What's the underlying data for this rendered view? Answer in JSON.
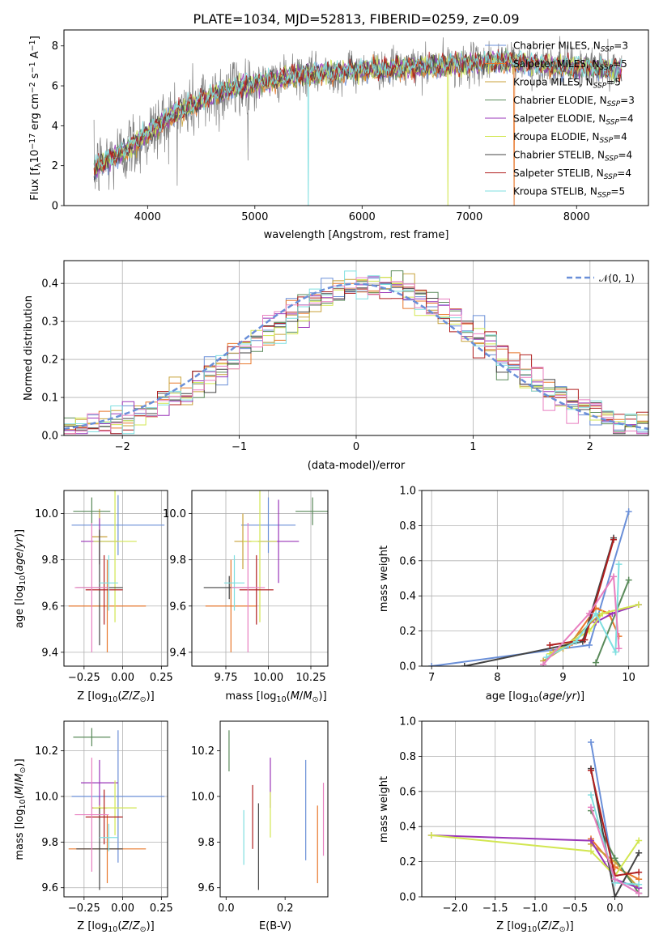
{
  "figure": {
    "title": "PLATE=1034, MJD=52813, FIBERID=0259, z=0.09"
  },
  "colors": {
    "Chabrier MILES": "#6a8fd8",
    "Salpeter MILES": "#e8782c",
    "Kroupa MILES": "#c8a23a",
    "Chabrier ELODIE": "#5a8a5a",
    "Salpeter ELODIE": "#9a35b8",
    "Kroupa ELODIE": "#d2e650",
    "Chabrier STELIB": "#444444",
    "Salpeter STELIB": "#b01e1e",
    "Kroupa STELIB": "#7fdfe0",
    "data": "#808080",
    "pink": "#e87fc0"
  },
  "chart_data": [
    {
      "id": "spectrum",
      "type": "line",
      "title": "PLATE=1034, MJD=52813, FIBERID=0259, z=0.09",
      "xlabel": "wavelength [Angstrom, rest frame]",
      "ylabel": "Flux [f_λ 10^-17 erg cm^-2 s^-1 A^-1]",
      "xlim": [
        3220,
        8670
      ],
      "ylim": [
        0,
        8.8
      ],
      "xticks": [
        4000,
        5000,
        6000,
        7000,
        8000
      ],
      "yticks": [
        0,
        2,
        4,
        6,
        8
      ],
      "grid": false,
      "legend_position": "right",
      "legend": [
        {
          "label": "Chabrier MILES, N_SSP=3",
          "base": "Chabrier MILES, N",
          "sub": "SSP",
          "tail": "=3"
        },
        {
          "label": "Salpeter MILES, N_SSP=5",
          "base": "Salpeter MILES, N",
          "sub": "SSP",
          "tail": "=5"
        },
        {
          "label": "Kroupa MILES, N_SSP=5",
          "base": "Kroupa MILES, N",
          "sub": "SSP",
          "tail": "=5"
        },
        {
          "label": "Chabrier ELODIE, N_SSP=3",
          "base": "Chabrier ELODIE, N",
          "sub": "SSP",
          "tail": "=3"
        },
        {
          "label": "Salpeter ELODIE, N_SSP=4",
          "base": "Salpeter ELODIE, N",
          "sub": "SSP",
          "tail": "=4"
        },
        {
          "label": "Kroupa ELODIE, N_SSP=4",
          "base": "Kroupa ELODIE, N",
          "sub": "SSP",
          "tail": "=4"
        },
        {
          "label": "Chabrier STELIB, N_SSP=4",
          "base": "Chabrier STELIB, N",
          "sub": "SSP",
          "tail": "=4"
        },
        {
          "label": "Salpeter STELIB, N_SSP=4",
          "base": "Salpeter STELIB, N",
          "sub": "SSP",
          "tail": "=4"
        },
        {
          "label": "Kroupa STELIB, N_SSP=5",
          "base": "Kroupa STELIB, N",
          "sub": "SSP",
          "tail": "=5"
        }
      ],
      "continuum": {
        "x": [
          3500,
          3600,
          3700,
          3800,
          3900,
          4000,
          4100,
          4200,
          4400,
          4600,
          4800,
          5000,
          5200,
          5400,
          5600,
          5800,
          6000,
          6200,
          6400,
          6600,
          6800,
          7000,
          7200,
          7400,
          7600,
          7800,
          8000,
          8200,
          8420
        ],
        "y": [
          1.8,
          2.2,
          2.5,
          2.8,
          3.2,
          3.6,
          4.0,
          4.4,
          5.0,
          5.5,
          5.9,
          6.1,
          6.3,
          6.5,
          6.6,
          6.7,
          6.8,
          6.85,
          6.9,
          6.95,
          7.05,
          7.1,
          7.2,
          7.2,
          7.1,
          7.0,
          6.95,
          6.9,
          6.8
        ]
      },
      "model_drops": [
        {
          "series": "Kroupa STELIB",
          "x": 5500
        },
        {
          "series": "Kroupa ELODIE",
          "x": 6800
        },
        {
          "series": "Salpeter MILES",
          "x": 7420
        }
      ]
    },
    {
      "id": "residuals",
      "type": "bar",
      "xlabel": "(data-model)/error",
      "ylabel": "Normed distribution",
      "xlim": [
        -2.5,
        2.5
      ],
      "ylim": [
        0,
        0.46
      ],
      "xticks": [
        -2,
        -1,
        0,
        1,
        2
      ],
      "yticks": [
        0.0,
        0.1,
        0.2,
        0.3,
        0.4
      ],
      "grid": true,
      "legend_position": "top-right",
      "legend": [
        {
          "label": "𝒩(0, 1)",
          "style": "dashed",
          "color": "#6a8fd8"
        }
      ],
      "bin_width": 0.1
    },
    {
      "id": "age-vs-Z",
      "type": "scatter",
      "xlabel": "Z [log10(Z/Z⊙)]",
      "ylabel": "age [log10(age/yr)]",
      "xlim": [
        -0.38,
        0.29
      ],
      "ylim": [
        9.34,
        10.1
      ],
      "xticks": [
        -0.25,
        0.0,
        0.25
      ],
      "yticks": [
        9.4,
        9.6,
        9.8,
        10.0
      ],
      "grid": true,
      "points": [
        {
          "series": "Chabrier MILES",
          "x": -0.03,
          "y": 9.95,
          "xerr": 0.3,
          "yerr": 0.13
        },
        {
          "series": "Salpeter MILES",
          "x": -0.1,
          "y": 9.6,
          "xerr": 0.25,
          "yerr": 0.2
        },
        {
          "series": "Kroupa MILES",
          "x": -0.15,
          "y": 9.9,
          "xerr": 0.05,
          "yerr": 0.12
        },
        {
          "series": "Chabrier ELODIE",
          "x": -0.2,
          "y": 10.01,
          "xerr": 0.12,
          "yerr": 0.06
        },
        {
          "series": "Salpeter ELODIE",
          "x": -0.15,
          "y": 9.88,
          "xerr": 0.12,
          "yerr": 0.1
        },
        {
          "series": "Kroupa ELODIE",
          "x": -0.05,
          "y": 9.88,
          "xerr": 0.14,
          "yerr": 0.35
        },
        {
          "series": "Chabrier STELIB",
          "x": -0.15,
          "y": 9.68,
          "xerr": 0.15,
          "yerr": 0.25
        },
        {
          "series": "Salpeter STELIB",
          "x": -0.12,
          "y": 9.67,
          "xerr": 0.12,
          "yerr": 0.15
        },
        {
          "series": "Kroupa STELIB",
          "x": -0.09,
          "y": 9.7,
          "xerr": 0.06,
          "yerr": 0.12
        },
        {
          "series": "pink",
          "x": -0.2,
          "y": 9.68,
          "xerr": 0.11,
          "yerr": 0.28
        }
      ]
    },
    {
      "id": "age-vs-mass",
      "type": "scatter",
      "xlabel": "mass [log10(M/M⊙)]",
      "ylabel": "",
      "xlim": [
        9.55,
        10.35
      ],
      "ylim": [
        9.34,
        10.1
      ],
      "xticks": [
        9.75,
        10.0,
        10.25
      ],
      "yticks": [
        9.4,
        9.6,
        9.8,
        10.0
      ],
      "grid": true,
      "points": [
        {
          "series": "Chabrier MILES",
          "x": 10.0,
          "y": 9.95,
          "xerr": 0.16,
          "yerr": 0.12
        },
        {
          "series": "Salpeter MILES",
          "x": 9.78,
          "y": 9.6,
          "xerr": 0.15,
          "yerr": 0.2
        },
        {
          "series": "Kroupa MILES",
          "x": 9.85,
          "y": 9.88,
          "xerr": 0.05,
          "yerr": 0.12
        },
        {
          "series": "Chabrier ELODIE",
          "x": 10.26,
          "y": 10.01,
          "xerr": 0.1,
          "yerr": 0.06
        },
        {
          "series": "Salpeter ELODIE",
          "x": 10.06,
          "y": 9.88,
          "xerr": 0.12,
          "yerr": 0.18
        },
        {
          "series": "Kroupa ELODIE",
          "x": 9.95,
          "y": 9.88,
          "xerr": 0.1,
          "yerr": 0.35
        },
        {
          "series": "Chabrier STELIB",
          "x": 9.77,
          "y": 9.68,
          "xerr": 0.15,
          "yerr": 0.05
        },
        {
          "series": "Salpeter STELIB",
          "x": 9.93,
          "y": 9.67,
          "xerr": 0.1,
          "yerr": 0.15
        },
        {
          "series": "Kroupa STELIB",
          "x": 9.8,
          "y": 9.7,
          "xerr": 0.06,
          "yerr": 0.12
        },
        {
          "series": "pink",
          "x": 9.88,
          "y": 9.68,
          "xerr": 0.1,
          "yerr": 0.28
        }
      ]
    },
    {
      "id": "massweight-vs-age",
      "type": "line",
      "xlabel": "age [log10(age/yr)]",
      "ylabel": "mass weight",
      "xlim": [
        6.85,
        10.3
      ],
      "ylim": [
        0,
        1.0
      ],
      "xticks": [
        7,
        8,
        9,
        10
      ],
      "yticks": [
        0.0,
        0.2,
        0.4,
        0.6,
        0.8,
        1.0
      ],
      "grid": true,
      "series": [
        {
          "name": "Chabrier MILES",
          "x": [
            7.0,
            9.4,
            10.0
          ],
          "y": [
            0.0,
            0.12,
            0.88
          ]
        },
        {
          "name": "Salpeter MILES",
          "x": [
            8.85,
            9.1,
            9.5,
            9.7,
            9.85
          ],
          "y": [
            0.08,
            0.12,
            0.33,
            0.3,
            0.17
          ]
        },
        {
          "name": "Kroupa MILES",
          "x": [
            8.7,
            9.0,
            9.55
          ],
          "y": [
            0.03,
            0.1,
            0.29
          ]
        },
        {
          "name": "Chabrier ELODIE",
          "x": [
            9.5,
            10.0
          ],
          "y": [
            0.02,
            0.49
          ]
        },
        {
          "name": "Salpeter ELODIE",
          "x": [
            9.5,
            9.75,
            10.15
          ],
          "y": [
            0.25,
            0.3,
            0.35
          ]
        },
        {
          "name": "Kroupa ELODIE",
          "x": [
            8.8,
            9.4,
            9.6,
            10.15
          ],
          "y": [
            0.07,
            0.2,
            0.3,
            0.35
          ]
        },
        {
          "name": "Chabrier STELIB",
          "x": [
            7.5,
            9.3,
            9.77
          ],
          "y": [
            0.0,
            0.14,
            0.73
          ]
        },
        {
          "name": "Salpeter STELIB",
          "x": [
            8.8,
            9.33,
            9.77
          ],
          "y": [
            0.12,
            0.15,
            0.72
          ]
        },
        {
          "name": "Kroupa STELIB",
          "x": [
            8.75,
            9.2,
            9.5,
            9.8,
            9.85
          ],
          "y": [
            0.05,
            0.14,
            0.3,
            0.08,
            0.58
          ]
        },
        {
          "name": "pink",
          "x": [
            8.7,
            9.4,
            9.77,
            9.85
          ],
          "y": [
            0.01,
            0.3,
            0.51,
            0.1
          ]
        }
      ]
    },
    {
      "id": "mass-vs-Z",
      "type": "scatter",
      "xlabel": "Z [log10(Z/Z⊙)]",
      "ylabel": "mass [log10(M/M⊙)]",
      "xlim": [
        -0.38,
        0.29
      ],
      "ylim": [
        9.56,
        10.33
      ],
      "xticks": [
        -0.25,
        0.0,
        0.25
      ],
      "yticks": [
        9.6,
        9.8,
        10.0,
        10.2
      ],
      "grid": true,
      "points": [
        {
          "series": "Chabrier MILES",
          "x": -0.03,
          "y": 10.0,
          "xerr": 0.3,
          "yerr": 0.29
        },
        {
          "series": "Salpeter MILES",
          "x": -0.1,
          "y": 9.77,
          "xerr": 0.25,
          "yerr": 0.15
        },
        {
          "series": "Kroupa MILES",
          "x": -0.15,
          "y": 9.95,
          "xerr": 0.05,
          "yerr": 0.05
        },
        {
          "series": "Chabrier ELODIE",
          "x": -0.2,
          "y": 10.26,
          "xerr": 0.12,
          "yerr": 0.04
        },
        {
          "series": "Salpeter ELODIE",
          "x": -0.15,
          "y": 10.06,
          "xerr": 0.12,
          "yerr": 0.1
        },
        {
          "series": "Kroupa ELODIE",
          "x": -0.05,
          "y": 9.95,
          "xerr": 0.14,
          "yerr": 0.12
        },
        {
          "series": "Chabrier STELIB",
          "x": -0.15,
          "y": 9.77,
          "xerr": 0.15,
          "yerr": 0.18
        },
        {
          "series": "Salpeter STELIB",
          "x": -0.12,
          "y": 9.91,
          "xerr": 0.12,
          "yerr": 0.12
        },
        {
          "series": "Kroupa STELIB",
          "x": -0.09,
          "y": 9.82,
          "xerr": 0.06,
          "yerr": 0.06
        },
        {
          "series": "pink",
          "x": -0.2,
          "y": 9.92,
          "xerr": 0.11,
          "yerr": 0.25
        }
      ]
    },
    {
      "id": "mass-vs-EBV",
      "type": "scatter",
      "xlabel": "E(B-V)",
      "ylabel": "",
      "xlim": [
        -0.02,
        0.345
      ],
      "ylim": [
        9.56,
        10.33
      ],
      "xticks": [
        0.0,
        0.2
      ],
      "yticks": [
        9.6,
        9.8,
        10.0,
        10.2
      ],
      "grid": false,
      "points": [
        {
          "series": "Chabrier ELODIE",
          "x": 0.01,
          "y": 10.2,
          "yerr": 0.09
        },
        {
          "series": "Kroupa STELIB",
          "x": 0.06,
          "y": 9.82,
          "yerr": 0.12
        },
        {
          "series": "Salpeter STELIB",
          "x": 0.09,
          "y": 9.91,
          "yerr": 0.14
        },
        {
          "series": "Chabrier STELIB",
          "x": 0.11,
          "y": 9.78,
          "yerr": 0.19
        },
        {
          "series": "Salpeter ELODIE",
          "x": 0.15,
          "y": 10.06,
          "yerr": 0.11
        },
        {
          "series": "Kroupa ELODIE",
          "x": 0.15,
          "y": 9.92,
          "yerr": 0.1
        },
        {
          "series": "Chabrier MILES",
          "x": 0.27,
          "y": 9.94,
          "yerr": 0.22
        },
        {
          "series": "Salpeter MILES",
          "x": 0.31,
          "y": 9.79,
          "yerr": 0.17
        },
        {
          "series": "pink",
          "x": 0.33,
          "y": 9.9,
          "yerr": 0.16
        }
      ]
    },
    {
      "id": "massweight-vs-Z",
      "type": "line",
      "xlabel": "Z [log10(Z/Z⊙)]",
      "ylabel": "mass weight",
      "xlim": [
        -2.42,
        0.42
      ],
      "ylim": [
        0,
        1.0
      ],
      "xticks": [
        -2.0,
        -1.5,
        -1.0,
        -0.5,
        0.0
      ],
      "yticks": [
        0.0,
        0.2,
        0.4,
        0.6,
        0.8,
        1.0
      ],
      "grid": true,
      "series": [
        {
          "name": "Chabrier MILES",
          "x": [
            -0.3,
            0.0,
            0.3
          ],
          "y": [
            0.88,
            0.1,
            0.02
          ]
        },
        {
          "name": "Salpeter MILES",
          "x": [
            -0.3,
            0.0,
            0.3
          ],
          "y": [
            0.33,
            0.17,
            0.1
          ]
        },
        {
          "name": "Kroupa MILES",
          "x": [
            -0.3,
            0.0,
            0.3
          ],
          "y": [
            0.3,
            0.2,
            0.05
          ]
        },
        {
          "name": "Chabrier ELODIE",
          "x": [
            -0.3,
            0.0,
            0.3
          ],
          "y": [
            0.49,
            0.22,
            0.02
          ]
        },
        {
          "name": "Salpeter ELODIE",
          "x": [
            -2.3,
            -0.3,
            0.0,
            0.3
          ],
          "y": [
            0.35,
            0.32,
            0.1,
            0.05
          ]
        },
        {
          "name": "Kroupa ELODIE",
          "x": [
            -2.3,
            -0.3,
            0.0,
            0.3
          ],
          "y": [
            0.35,
            0.26,
            0.12,
            0.32
          ]
        },
        {
          "name": "Chabrier STELIB",
          "x": [
            -0.3,
            0.0,
            0.3
          ],
          "y": [
            0.73,
            0.0,
            0.25
          ]
        },
        {
          "name": "Salpeter STELIB",
          "x": [
            -0.3,
            0.0,
            0.3
          ],
          "y": [
            0.72,
            0.12,
            0.14
          ]
        },
        {
          "name": "Kroupa STELIB",
          "x": [
            -0.3,
            0.0,
            0.3
          ],
          "y": [
            0.58,
            0.08,
            0.07
          ]
        },
        {
          "name": "pink",
          "x": [
            -0.3,
            0.0,
            0.3
          ],
          "y": [
            0.51,
            0.1,
            0.02
          ]
        }
      ]
    }
  ]
}
